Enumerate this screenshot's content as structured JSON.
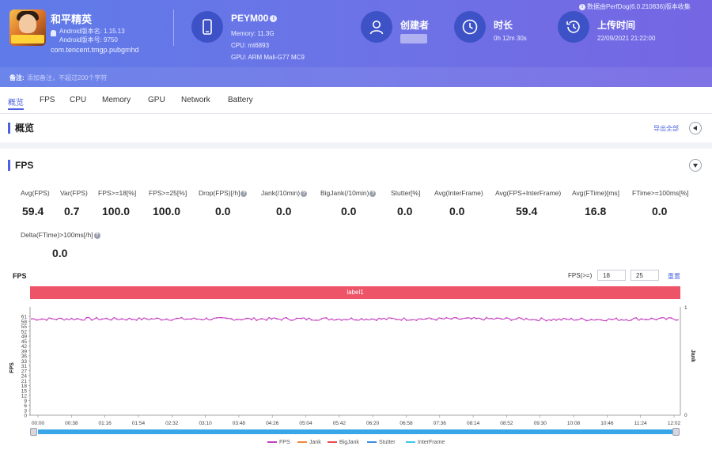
{
  "app": {
    "name": "和平精英",
    "version": "Android版本名: 1.15.13",
    "build": "Android版本号: 9750",
    "package": "com.tencent.tmgp.pubgmhd"
  },
  "device": {
    "model": "PEYM00",
    "memory": "Memory: 11.3G",
    "cpu": "CPU: mt6893",
    "gpu": "GPU: ARM Mali-G77 MC9"
  },
  "creator": {
    "label": "创建者"
  },
  "duration": {
    "label": "时长",
    "value": "0h 12m 30s"
  },
  "upload": {
    "label": "上传时间",
    "value": "22/09/2021 21:22:00"
  },
  "collect_note": "数据由PerfDog(6.0.210836)版本收集",
  "remark": {
    "label": "备注:",
    "placeholder": "添加备注，不超过200个字符"
  },
  "tabs": [
    "概览",
    "FPS",
    "CPU",
    "Memory",
    "GPU",
    "Network",
    "Battery"
  ],
  "overview": {
    "title": "概览",
    "export": "导出全部"
  },
  "fps_section": {
    "title": "FPS"
  },
  "stats": [
    {
      "label": "Avg(FPS)",
      "value": "59.4",
      "help": false
    },
    {
      "label": "Var(FPS)",
      "value": "0.7",
      "help": false
    },
    {
      "label": "FPS>=18[%]",
      "value": "100.0",
      "help": false
    },
    {
      "label": "FPS>=25[%]",
      "value": "100.0",
      "help": false
    },
    {
      "label": "Drop(FPS)[/h]",
      "value": "0.0",
      "help": true
    },
    {
      "label": "Jank(/10min)",
      "value": "0.0",
      "help": true
    },
    {
      "label": "BigJank(/10min)",
      "value": "0.0",
      "help": true
    },
    {
      "label": "Stutter[%]",
      "value": "0.0",
      "help": false
    },
    {
      "label": "Avg(InterFrame)",
      "value": "0.0",
      "help": false
    },
    {
      "label": "Avg(FPS+InterFrame)",
      "value": "59.4",
      "help": false
    },
    {
      "label": "Avg(FTime)[ms]",
      "value": "16.8",
      "help": false
    },
    {
      "label": "FTime>=100ms[%]",
      "value": "0.0",
      "help": false
    },
    {
      "label": "Delta(FTime)>100ms[/h]",
      "value": "0.0",
      "help": true
    }
  ],
  "chart_controls": {
    "title": "FPS",
    "threshold_label": "FPS(>=)",
    "threshold1": "18",
    "threshold2": "25",
    "reset": "重置",
    "band_label": "label1"
  },
  "chart_data": {
    "type": "line",
    "ylabel": "FPS",
    "y2label": "Jank",
    "ylim": [
      0,
      61
    ],
    "yticks": [
      "61",
      "58",
      "55",
      "52",
      "49",
      "45",
      "42",
      "39",
      "36",
      "33",
      "31",
      "27",
      "24",
      "21",
      "18",
      "15",
      "12",
      "9",
      "6",
      "3",
      "0"
    ],
    "y2ticks": [
      "1",
      "0"
    ],
    "xticks": [
      "00:00",
      "00:38",
      "01:16",
      "01:54",
      "02:32",
      "03:10",
      "03:48",
      "04:26",
      "05:04",
      "05:42",
      "06:20",
      "06:58",
      "07:36",
      "08:14",
      "08:52",
      "09:30",
      "10:08",
      "10:46",
      "11:24",
      "12:02"
    ],
    "fps_mean": 59.4,
    "fps_var": 0.7,
    "series": [
      {
        "name": "FPS",
        "color": "#c53fc0"
      },
      {
        "name": "Jank",
        "color": "#f0883a"
      },
      {
        "name": "BigJank",
        "color": "#e84a4a"
      },
      {
        "name": "Stutter",
        "color": "#3a8fe0"
      },
      {
        "name": "InterFrame",
        "color": "#3ec6e8"
      }
    ]
  },
  "colors": {
    "accent": "#4b62e0",
    "band": "#ee5468",
    "header_start": "#5f7be9",
    "header_end": "#7566e3"
  }
}
